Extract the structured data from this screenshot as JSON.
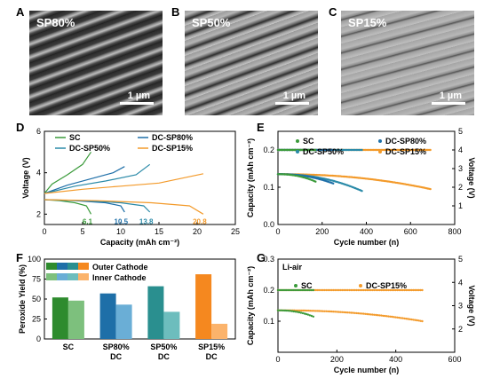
{
  "sem_panels": [
    {
      "letter": "A",
      "label": "SP80%",
      "scale": "1 µm"
    },
    {
      "letter": "B",
      "label": "SP50%",
      "scale": "1 µm"
    },
    {
      "letter": "C",
      "label": "SP15%",
      "scale": "1 µm"
    }
  ],
  "chart_data": [
    {
      "panel": "D",
      "type": "line",
      "xlabel": "Capacity (mAh cm⁻²)",
      "ylabel": "Voltage (V)",
      "xlim": [
        0,
        25
      ],
      "ylim": [
        1.5,
        6
      ],
      "xticks": [
        0,
        5,
        10,
        15,
        20,
        25
      ],
      "yticks": [
        2,
        4,
        6
      ],
      "legend": [
        "SC",
        "DC-SP50%",
        "DC-SP80%",
        "DC-SP15%"
      ],
      "series": [
        {
          "name": "SC",
          "color": "#3a9a3a",
          "end": 6.1,
          "end_label": "6.1",
          "charge": [
            [
              0,
              3.0
            ],
            [
              1,
              3.45
            ],
            [
              3,
              3.9
            ],
            [
              5,
              4.4
            ],
            [
              6.1,
              5.0
            ]
          ],
          "discharge": [
            [
              0,
              2.7
            ],
            [
              2,
              2.65
            ],
            [
              4,
              2.55
            ],
            [
              5.5,
              2.4
            ],
            [
              6.1,
              2.0
            ]
          ]
        },
        {
          "name": "DC-SP80%",
          "color": "#1e6fa8",
          "end": 10.5,
          "end_label": "10.5",
          "charge": [
            [
              0,
              3.0
            ],
            [
              3,
              3.4
            ],
            [
              6,
              3.7
            ],
            [
              9,
              4.0
            ],
            [
              10.5,
              4.3
            ]
          ],
          "discharge": [
            [
              0,
              2.7
            ],
            [
              4,
              2.65
            ],
            [
              8,
              2.55
            ],
            [
              10,
              2.4
            ],
            [
              10.5,
              2.1
            ]
          ]
        },
        {
          "name": "DC-SP50%",
          "color": "#2a8aa8",
          "end": 13.8,
          "end_label": "13.8",
          "charge": [
            [
              0,
              3.0
            ],
            [
              4,
              3.35
            ],
            [
              8,
              3.6
            ],
            [
              12,
              3.9
            ],
            [
              13.8,
              4.4
            ]
          ],
          "discharge": [
            [
              0,
              2.7
            ],
            [
              5,
              2.65
            ],
            [
              10,
              2.55
            ],
            [
              13,
              2.4
            ],
            [
              13.8,
              2.1
            ]
          ]
        },
        {
          "name": "DC-SP15%",
          "color": "#f39a2a",
          "end": 20.8,
          "end_label": "20.8",
          "charge": [
            [
              0,
              3.0
            ],
            [
              5,
              3.2
            ],
            [
              10,
              3.35
            ],
            [
              15,
              3.5
            ],
            [
              20.8,
              3.95
            ]
          ],
          "discharge": [
            [
              0,
              2.7
            ],
            [
              7,
              2.65
            ],
            [
              14,
              2.55
            ],
            [
              19,
              2.4
            ],
            [
              20.8,
              2.0
            ]
          ]
        }
      ]
    },
    {
      "panel": "E",
      "type": "scatter",
      "xlabel": "Cycle number (n)",
      "ylabel": "Capacity (mAh cm⁻²)",
      "y2label": "Voltage (V)",
      "xlim": [
        0,
        800
      ],
      "ylim": [
        0,
        0.25
      ],
      "y2lim": [
        0,
        5
      ],
      "xticks": [
        0,
        200,
        400,
        600,
        800
      ],
      "yticks": [
        0.0,
        0.1,
        0.2
      ],
      "y2ticks": [
        1,
        2,
        3,
        4,
        5
      ],
      "legend": [
        "SC",
        "DC-SP50%",
        "DC-SP80%",
        "DC-SP15%"
      ],
      "series": [
        {
          "name": "SC",
          "color": "#3a9a3a",
          "cap_start": 0.135,
          "cap_end": 0.115,
          "cycles": 170,
          "flat": 0.2
        },
        {
          "name": "DC-SP80%",
          "color": "#1e6fa8",
          "cap_start": 0.135,
          "cap_end": 0.11,
          "cycles": 250,
          "flat": 0.2
        },
        {
          "name": "DC-SP50%",
          "color": "#2a8aa8",
          "cap_start": 0.135,
          "cap_end": 0.09,
          "cycles": 380,
          "flat": 0.2
        },
        {
          "name": "DC-SP15%",
          "color": "#f39a2a",
          "cap_start": 0.135,
          "cap_end": 0.095,
          "cycles": 690,
          "flat": 0.2
        }
      ]
    },
    {
      "panel": "F",
      "type": "bar",
      "ylabel": "Peroxide Yield (%)",
      "ylim": [
        0,
        100
      ],
      "yticks": [
        0,
        25,
        50,
        75,
        100
      ],
      "categories": [
        "SC",
        "SP80%\nDC",
        "SP50%\nDC",
        "SP15%\nDC"
      ],
      "legend": [
        "Outer Cathode",
        "Inner Cathode"
      ],
      "series": [
        {
          "name": "Outer Cathode",
          "values": [
            52,
            57,
            66,
            81
          ],
          "colors": [
            "#2e8b2e",
            "#1e6fa8",
            "#2a8f8f",
            "#f5881f"
          ]
        },
        {
          "name": "Inner Cathode",
          "values": [
            48,
            43,
            34,
            19
          ],
          "colors": [
            "#7dc07d",
            "#6aaed6",
            "#6dbdbd",
            "#fbb36b"
          ]
        }
      ]
    },
    {
      "panel": "G",
      "type": "scatter",
      "xlabel": "Cycle number (n)",
      "ylabel": "Capacity (mAh cm⁻²)",
      "y2label": "Voltage (V)",
      "annotation": "Li-air",
      "xlim": [
        0,
        600
      ],
      "ylim": [
        0,
        0.3
      ],
      "y2lim": [
        1,
        5
      ],
      "xticks": [
        0,
        200,
        400,
        600
      ],
      "yticks": [
        0.1,
        0.2,
        0.3
      ],
      "y2ticks": [
        2,
        3,
        4,
        5
      ],
      "legend": [
        "SC",
        "DC-SP15%"
      ],
      "series": [
        {
          "name": "SC",
          "color": "#3a9a3a",
          "cap_start": 0.135,
          "cap_end": 0.115,
          "cycles": 120,
          "flat": 0.2
        },
        {
          "name": "DC-SP15%",
          "color": "#f39a2a",
          "cap_start": 0.135,
          "cap_end": 0.1,
          "cycles": 490,
          "flat": 0.2
        }
      ]
    }
  ]
}
